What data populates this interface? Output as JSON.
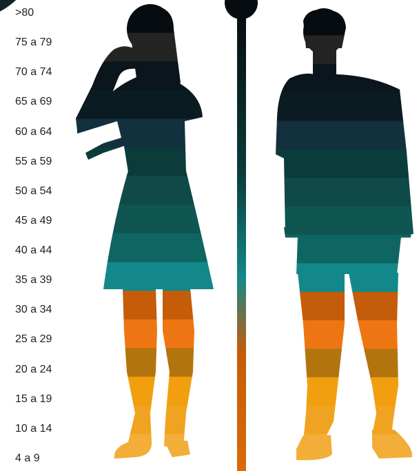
{
  "chart_data": {
    "type": "pictograph",
    "age_groups": [
      ">80",
      "75 a 79",
      "70 a 74",
      "65 a 69",
      "60 a 64",
      "55 a 59",
      "50 a 54",
      "45 a 49",
      "40 a 44",
      "35 a 39",
      "30 a 34",
      "25 a 29",
      "20 a 24",
      "15 a 19",
      "10 a 14",
      "4 a 9"
    ],
    "band_colors": [
      "#070c10",
      "#242424",
      "#0a161c",
      "#0b1b22",
      "#13303f",
      "#0a3c3a",
      "#0f4a48",
      "#0f5552",
      "#0f6562",
      "#13888a",
      "#c55c09",
      "#ee7612",
      "#b2750e",
      "#f29f0f",
      "#f0a320",
      "#f2ae38"
    ],
    "figures": [
      "woman-silhouette",
      "man-silhouette"
    ],
    "scale_gradient": [
      "#070c10",
      "#0a3c3a",
      "#13888a",
      "#c55c09",
      "#d86a08"
    ]
  }
}
